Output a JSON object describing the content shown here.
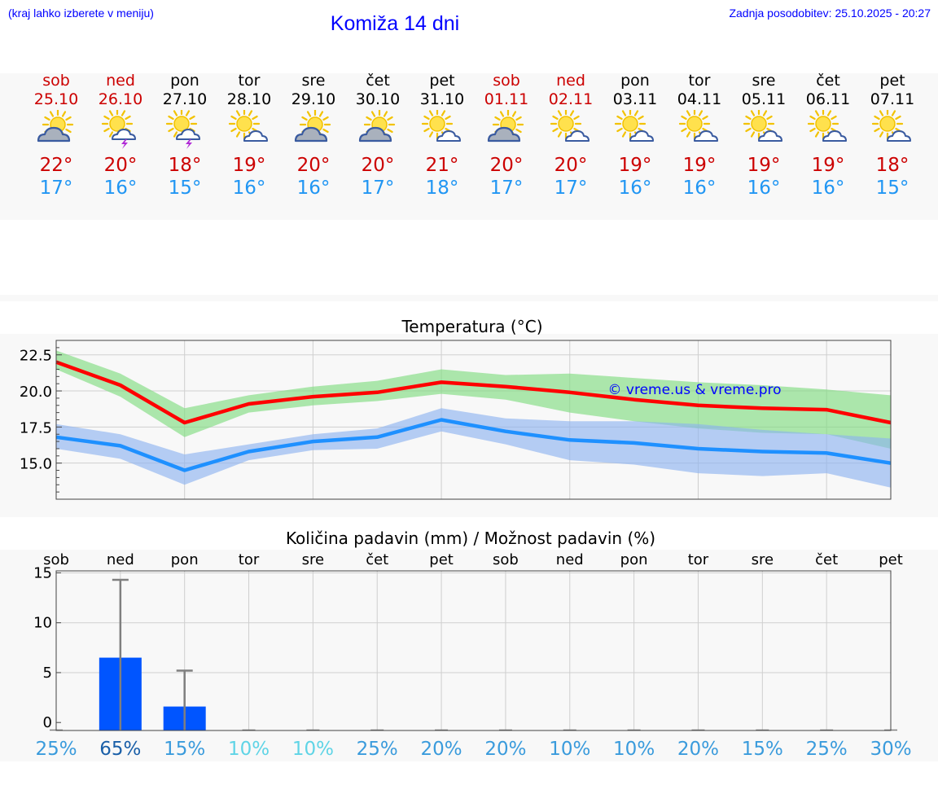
{
  "header": {
    "left_note": "(kraj lahko izberete v meniju)",
    "title": "Komiža 14 dni",
    "last_update": "Zadnja posodobitev: 25.10.2025 - 20:27"
  },
  "colors": {
    "accent": "#0000ff",
    "weekend_red": "#cc0000",
    "max_temp": "#cc0000",
    "min_temp": "#2196f3",
    "bar": "#0055ff"
  },
  "days": [
    {
      "name": "sob",
      "date": "25.10",
      "weekend": true,
      "icon": "sun-cloud-icon",
      "max": "22°",
      "min": "17°"
    },
    {
      "name": "ned",
      "date": "26.10",
      "weekend": true,
      "icon": "sun-storm-icon",
      "max": "20°",
      "min": "16°"
    },
    {
      "name": "pon",
      "date": "27.10",
      "weekend": false,
      "icon": "sun-storm-icon",
      "max": "18°",
      "min": "15°"
    },
    {
      "name": "tor",
      "date": "28.10",
      "weekend": false,
      "icon": "sun-light-cloud-icon",
      "max": "19°",
      "min": "16°"
    },
    {
      "name": "sre",
      "date": "29.10",
      "weekend": false,
      "icon": "sun-cloud-icon",
      "max": "20°",
      "min": "16°"
    },
    {
      "name": "čet",
      "date": "30.10",
      "weekend": false,
      "icon": "sun-cloud-icon",
      "max": "20°",
      "min": "17°"
    },
    {
      "name": "pet",
      "date": "31.10",
      "weekend": false,
      "icon": "sun-light-cloud-icon",
      "max": "21°",
      "min": "18°"
    },
    {
      "name": "sob",
      "date": "01.11",
      "weekend": true,
      "icon": "sun-cloud-icon",
      "max": "20°",
      "min": "17°"
    },
    {
      "name": "ned",
      "date": "02.11",
      "weekend": true,
      "icon": "sun-light-cloud-icon",
      "max": "20°",
      "min": "17°"
    },
    {
      "name": "pon",
      "date": "03.11",
      "weekend": false,
      "icon": "sun-light-cloud-icon",
      "max": "19°",
      "min": "16°"
    },
    {
      "name": "tor",
      "date": "04.11",
      "weekend": false,
      "icon": "sun-light-cloud-icon",
      "max": "19°",
      "min": "16°"
    },
    {
      "name": "sre",
      "date": "05.11",
      "weekend": false,
      "icon": "sun-light-cloud-icon",
      "max": "19°",
      "min": "16°"
    },
    {
      "name": "čet",
      "date": "06.11",
      "weekend": false,
      "icon": "sun-light-cloud-icon",
      "max": "19°",
      "min": "16°"
    },
    {
      "name": "pet",
      "date": "07.11",
      "weekend": false,
      "icon": "sun-light-cloud-icon",
      "max": "18°",
      "min": "15°"
    }
  ],
  "chart_data": [
    {
      "type": "line",
      "title": "Temperatura (°C)",
      "watermark": "© vreme.us & vreme.pro",
      "x": [
        0,
        1,
        2,
        3,
        4,
        5,
        6,
        7,
        8,
        9,
        10,
        11,
        12,
        13
      ],
      "ylim": [
        12.5,
        23.5
      ],
      "yticks": [
        15.0,
        17.5,
        20.0,
        22.5
      ],
      "ytick_labels": [
        "15.0",
        "17.5",
        "20.0",
        "22.5"
      ],
      "grid": true,
      "series": [
        {
          "name": "max",
          "color": "#ff0000",
          "values": [
            22.0,
            20.4,
            17.8,
            19.1,
            19.6,
            19.9,
            20.6,
            20.3,
            19.9,
            19.4,
            19.0,
            18.8,
            18.7,
            17.8
          ]
        },
        {
          "name": "min",
          "color": "#1e90ff",
          "values": [
            16.8,
            16.2,
            14.5,
            15.8,
            16.5,
            16.8,
            18.0,
            17.2,
            16.6,
            16.4,
            16.0,
            15.8,
            15.7,
            15.0
          ]
        }
      ],
      "bands": [
        {
          "name": "max-range",
          "color": "#7ddc7d",
          "lower": [
            21.5,
            19.6,
            16.8,
            18.5,
            19.0,
            19.3,
            19.8,
            19.4,
            18.5,
            17.9,
            17.4,
            17.1,
            17.0,
            16.0
          ],
          "upper": [
            22.8,
            21.2,
            18.8,
            19.7,
            20.3,
            20.7,
            21.5,
            21.1,
            21.2,
            20.9,
            20.6,
            20.4,
            20.1,
            19.7
          ]
        },
        {
          "name": "min-range",
          "color": "#8ab1f0",
          "lower": [
            16.0,
            15.3,
            13.5,
            15.2,
            15.9,
            16.0,
            17.2,
            16.3,
            15.2,
            14.9,
            14.3,
            14.1,
            14.3,
            13.3
          ],
          "upper": [
            17.7,
            17.0,
            15.6,
            16.3,
            17.0,
            17.4,
            18.8,
            18.1,
            17.9,
            17.9,
            17.7,
            17.3,
            17.0,
            16.7
          ]
        }
      ]
    },
    {
      "type": "bar",
      "title": "Količina padavin (mm) / Možnost padavin (%)",
      "categories": [
        "sob",
        "ned",
        "pon",
        "tor",
        "sre",
        "čet",
        "pet",
        "sob",
        "ned",
        "pon",
        "tor",
        "sre",
        "čet",
        "pet"
      ],
      "values": [
        0,
        6.5,
        1.6,
        0,
        0,
        0,
        0,
        0,
        0,
        0,
        0,
        0,
        0,
        0
      ],
      "error_max": [
        0,
        14.3,
        5.2,
        0,
        0,
        0,
        0,
        0,
        0,
        0,
        0,
        0,
        0,
        0
      ],
      "ylim": [
        -0.8,
        15.2
      ],
      "yticks": [
        0,
        5,
        10,
        15
      ],
      "ytick_labels": [
        "0",
        "5",
        "10",
        "15"
      ],
      "ylabel": "",
      "grid": true,
      "probabilities": [
        "25%",
        "65%",
        "15%",
        "10%",
        "10%",
        "25%",
        "20%",
        "20%",
        "10%",
        "10%",
        "20%",
        "15%",
        "25%",
        "30%"
      ],
      "probability_colors": [
        "#3a9bdc",
        "#1a5fa8",
        "#3a9bdc",
        "#5fd4e6",
        "#5fd4e6",
        "#3a9bdc",
        "#3a9bdc",
        "#3a9bdc",
        "#3a9bdc",
        "#3a9bdc",
        "#3a9bdc",
        "#3a9bdc",
        "#3a9bdc",
        "#3a9bdc"
      ]
    }
  ]
}
